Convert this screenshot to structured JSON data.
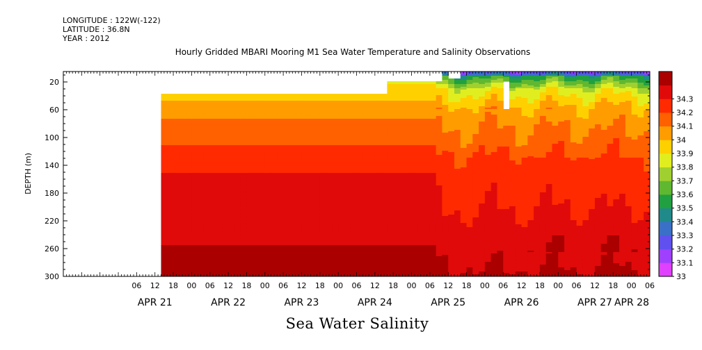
{
  "header": {
    "longitude": "LONGITUDE : 122W(-122)",
    "latitude": "LATITUDE : 36.8N",
    "year": "YEAR : 2012"
  },
  "chart_data": {
    "type": "heatmap",
    "title": "Hourly Gridded MBARI Mooring M1 Sea Water Temperature and Salinity Observations",
    "variable_label": "Sea Water Salinity",
    "ylabel": "DEPTH (m)",
    "y_ticks": [
      20,
      60,
      100,
      140,
      180,
      220,
      260,
      300
    ],
    "ylim": [
      300,
      5
    ],
    "x_hour_ticks": [
      "06",
      "12",
      "18",
      "00",
      "06",
      "12",
      "18",
      "00",
      "06",
      "12",
      "18",
      "00",
      "06",
      "12",
      "18",
      "00",
      "06",
      "12",
      "18",
      "00",
      "06",
      "12",
      "18",
      "00",
      "06",
      "12",
      "18",
      "00",
      "06"
    ],
    "x_day_labels": [
      "APR 21",
      "APR 22",
      "APR 23",
      "APR 24",
      "APR 25",
      "APR 26",
      "APR 27",
      "APR 28"
    ],
    "x_range_hours_from_apr21_00": [
      -18,
      174
    ],
    "colorbar": {
      "levels": [
        33.0,
        33.1,
        33.2,
        33.3,
        33.4,
        33.5,
        33.6,
        33.7,
        33.8,
        33.9,
        34.0,
        34.1,
        34.2,
        34.3
      ],
      "tick_labels": [
        "33",
        "33.1",
        "33.2",
        "33.3",
        "33.4",
        "33.5",
        "33.6",
        "33.7",
        "33.8",
        "33.9",
        "34",
        "34.1",
        "34.2",
        "34.3"
      ],
      "colors": [
        "#e040ff",
        "#a040ff",
        "#6050f0",
        "#3a70c8",
        "#208a8a",
        "#20a040",
        "#60b830",
        "#a0d030",
        "#e0ee20",
        "#ffd000",
        "#ff9c00",
        "#ff6000",
        "#ff2a00",
        "#e00a0a",
        "#aa0000"
      ]
    },
    "data_start": "APR 21 14:00",
    "upper_profile_start": "APR 24 16:00",
    "depth_profile_apr21_24": [
      {
        "depth": 40,
        "value": 33.85
      },
      {
        "depth": 50,
        "value": 33.92
      },
      {
        "depth": 60,
        "value": 33.96
      },
      {
        "depth": 80,
        "value": 34.02
      },
      {
        "depth": 100,
        "value": 34.07
      },
      {
        "depth": 120,
        "value": 34.12
      },
      {
        "depth": 140,
        "value": 34.17
      },
      {
        "depth": 160,
        "value": 34.22
      },
      {
        "depth": 220,
        "value": 34.22
      },
      {
        "depth": 240,
        "value": 34.27
      },
      {
        "depth": 260,
        "value": 34.31
      },
      {
        "depth": 300,
        "value": 34.31
      }
    ]
  }
}
